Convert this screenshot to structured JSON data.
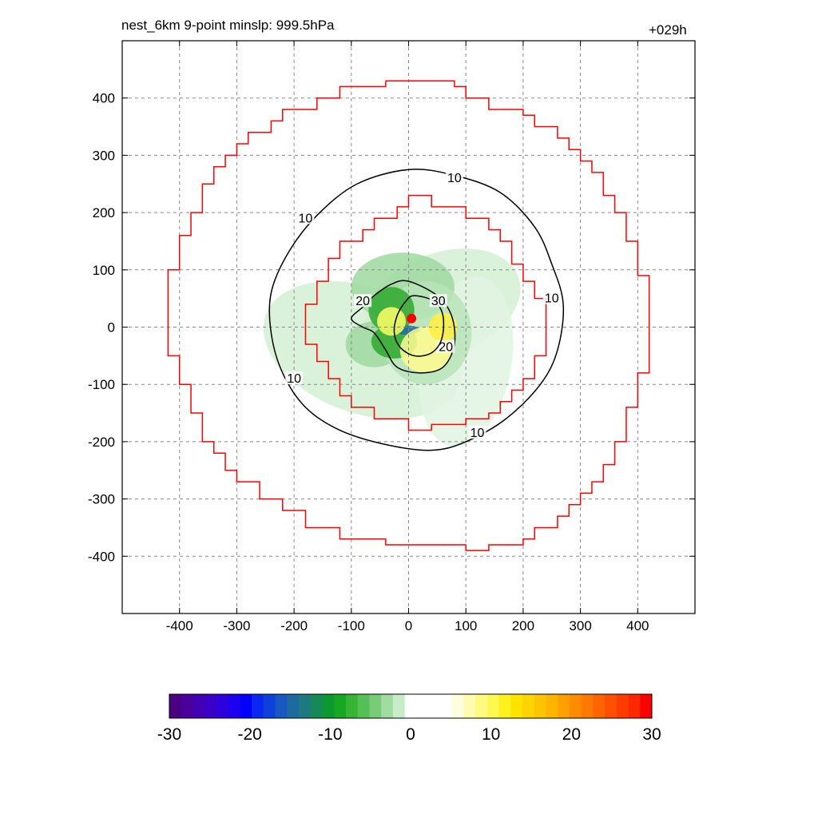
{
  "header": {
    "title_left": "nest_6km  9-point minslp: 999.5hPa",
    "title_right": "+029h"
  },
  "chart_data": {
    "type": "contour",
    "xlim": [
      -500,
      500
    ],
    "ylim": [
      -500,
      500
    ],
    "x_ticks": [
      -400,
      -300,
      -200,
      -100,
      0,
      100,
      200,
      300,
      400
    ],
    "y_ticks": [
      400,
      300,
      200,
      100,
      0,
      -100,
      -200,
      -300,
      -400
    ],
    "x_tick_labels": [
      "-400",
      "-300",
      "-200",
      "-100",
      "0",
      "100",
      "200",
      "300",
      "400"
    ],
    "y_tick_labels": [
      "400",
      "300",
      "200",
      "100",
      "0",
      "-100",
      "-200",
      "-300",
      "-400"
    ],
    "grid": true,
    "grid_style": "dashed",
    "boundary_rings": {
      "color": "#ff0000",
      "outer": [
        [
          -40,
          430
        ],
        [
          80,
          430
        ],
        [
          80,
          420
        ],
        [
          100,
          420
        ],
        [
          100,
          400
        ],
        [
          140,
          400
        ],
        [
          140,
          380
        ],
        [
          200,
          380
        ],
        [
          200,
          370
        ],
        [
          220,
          370
        ],
        [
          220,
          350
        ],
        [
          260,
          350
        ],
        [
          260,
          330
        ],
        [
          280,
          330
        ],
        [
          280,
          310
        ],
        [
          300,
          310
        ],
        [
          300,
          290
        ],
        [
          320,
          290
        ],
        [
          320,
          270
        ],
        [
          340,
          270
        ],
        [
          340,
          230
        ],
        [
          360,
          230
        ],
        [
          360,
          200
        ],
        [
          380,
          200
        ],
        [
          380,
          150
        ],
        [
          400,
          150
        ],
        [
          400,
          90
        ],
        [
          420,
          90
        ],
        [
          420,
          -80
        ],
        [
          400,
          -80
        ],
        [
          400,
          -140
        ],
        [
          380,
          -140
        ],
        [
          380,
          -200
        ],
        [
          360,
          -200
        ],
        [
          360,
          -240
        ],
        [
          340,
          -240
        ],
        [
          340,
          -270
        ],
        [
          320,
          -270
        ],
        [
          320,
          -290
        ],
        [
          300,
          -290
        ],
        [
          300,
          -310
        ],
        [
          280,
          -310
        ],
        [
          280,
          -330
        ],
        [
          260,
          -330
        ],
        [
          260,
          -350
        ],
        [
          220,
          -350
        ],
        [
          220,
          -370
        ],
        [
          200,
          -370
        ],
        [
          200,
          -380
        ],
        [
          140,
          -380
        ],
        [
          140,
          -390
        ],
        [
          100,
          -390
        ],
        [
          100,
          -380
        ],
        [
          -40,
          -380
        ],
        [
          -40,
          -370
        ],
        [
          -120,
          -370
        ],
        [
          -120,
          -350
        ],
        [
          -180,
          -350
        ],
        [
          -180,
          -320
        ],
        [
          -220,
          -320
        ],
        [
          -220,
          -300
        ],
        [
          -260,
          -300
        ],
        [
          -260,
          -270
        ],
        [
          -300,
          -270
        ],
        [
          -300,
          -250
        ],
        [
          -320,
          -250
        ],
        [
          -320,
          -220
        ],
        [
          -340,
          -220
        ],
        [
          -340,
          -200
        ],
        [
          -360,
          -200
        ],
        [
          -360,
          -150
        ],
        [
          -380,
          -150
        ],
        [
          -380,
          -100
        ],
        [
          -400,
          -100
        ],
        [
          -400,
          -50
        ],
        [
          -420,
          -50
        ],
        [
          -420,
          100
        ],
        [
          -400,
          100
        ],
        [
          -400,
          160
        ],
        [
          -380,
          160
        ],
        [
          -380,
          200
        ],
        [
          -360,
          200
        ],
        [
          -360,
          250
        ],
        [
          -340,
          250
        ],
        [
          -340,
          280
        ],
        [
          -320,
          280
        ],
        [
          -320,
          300
        ],
        [
          -300,
          300
        ],
        [
          -300,
          320
        ],
        [
          -280,
          320
        ],
        [
          -280,
          340
        ],
        [
          -240,
          340
        ],
        [
          -240,
          360
        ],
        [
          -220,
          360
        ],
        [
          -220,
          380
        ],
        [
          -160,
          380
        ],
        [
          -160,
          400
        ],
        [
          -120,
          400
        ],
        [
          -120,
          420
        ],
        [
          -40,
          420
        ],
        [
          -40,
          430
        ]
      ],
      "inner": [
        [
          0,
          230
        ],
        [
          40,
          230
        ],
        [
          40,
          210
        ],
        [
          100,
          210
        ],
        [
          100,
          190
        ],
        [
          140,
          190
        ],
        [
          140,
          170
        ],
        [
          160,
          170
        ],
        [
          160,
          150
        ],
        [
          180,
          150
        ],
        [
          180,
          110
        ],
        [
          200,
          110
        ],
        [
          200,
          80
        ],
        [
          220,
          80
        ],
        [
          220,
          50
        ],
        [
          240,
          50
        ],
        [
          240,
          -50
        ],
        [
          220,
          -50
        ],
        [
          220,
          -90
        ],
        [
          200,
          -90
        ],
        [
          200,
          -110
        ],
        [
          180,
          -110
        ],
        [
          180,
          -130
        ],
        [
          160,
          -130
        ],
        [
          160,
          -150
        ],
        [
          140,
          -150
        ],
        [
          140,
          -160
        ],
        [
          100,
          -160
        ],
        [
          100,
          -170
        ],
        [
          40,
          -170
        ],
        [
          40,
          -180
        ],
        [
          0,
          -180
        ],
        [
          0,
          -160
        ],
        [
          -60,
          -160
        ],
        [
          -60,
          -140
        ],
        [
          -100,
          -140
        ],
        [
          -100,
          -120
        ],
        [
          -120,
          -120
        ],
        [
          -120,
          -90
        ],
        [
          -140,
          -90
        ],
        [
          -140,
          -60
        ],
        [
          -160,
          -60
        ],
        [
          -160,
          -30
        ],
        [
          -180,
          -30
        ],
        [
          -180,
          40
        ],
        [
          -160,
          40
        ],
        [
          -160,
          80
        ],
        [
          -140,
          80
        ],
        [
          -140,
          120
        ],
        [
          -120,
          120
        ],
        [
          -120,
          150
        ],
        [
          -80,
          150
        ],
        [
          -80,
          170
        ],
        [
          -60,
          170
        ],
        [
          -60,
          190
        ],
        [
          -20,
          190
        ],
        [
          -20,
          210
        ],
        [
          0,
          210
        ],
        [
          0,
          230
        ]
      ]
    },
    "contour_lines": [
      {
        "level": 10,
        "labels": [
          "10",
          "10",
          "10",
          "10",
          "10"
        ],
        "points": [
          [
            0,
            275
          ],
          [
            80,
            265
          ],
          [
            160,
            235
          ],
          [
            220,
            175
          ],
          [
            250,
            110
          ],
          [
            270,
            40
          ],
          [
            260,
            -40
          ],
          [
            230,
            -100
          ],
          [
            170,
            -160
          ],
          [
            100,
            -200
          ],
          [
            40,
            -215
          ],
          [
            -40,
            -205
          ],
          [
            -120,
            -180
          ],
          [
            -180,
            -140
          ],
          [
            -220,
            -80
          ],
          [
            -240,
            -10
          ],
          [
            -240,
            60
          ],
          [
            -210,
            130
          ],
          [
            -160,
            195
          ],
          [
            -90,
            250
          ],
          [
            0,
            275
          ]
        ]
      },
      {
        "level": 20,
        "labels": [
          "20",
          "20"
        ],
        "points": [
          [
            0,
            80
          ],
          [
            50,
            55
          ],
          [
            75,
            20
          ],
          [
            80,
            -30
          ],
          [
            60,
            -70
          ],
          [
            20,
            -80
          ],
          [
            -20,
            -70
          ],
          [
            -40,
            -40
          ],
          [
            -60,
            -10
          ],
          [
            -80,
            0
          ],
          [
            -100,
            15
          ],
          [
            -80,
            35
          ],
          [
            -60,
            55
          ],
          [
            -30,
            75
          ],
          [
            0,
            80
          ]
        ]
      },
      {
        "level": 30,
        "labels": [
          "30"
        ],
        "points": [
          [
            10,
            55
          ],
          [
            45,
            45
          ],
          [
            60,
            20
          ],
          [
            58,
            -20
          ],
          [
            40,
            -45
          ],
          [
            10,
            -50
          ],
          [
            -15,
            -35
          ],
          [
            -25,
            -10
          ],
          [
            -20,
            20
          ],
          [
            -5,
            45
          ],
          [
            10,
            55
          ]
        ]
      }
    ],
    "storm_center": {
      "x": 5,
      "y": 15,
      "color": "#ff0000"
    },
    "colorbar": {
      "ticks": [
        -30,
        -20,
        -10,
        0,
        10,
        20,
        30
      ],
      "tick_labels": [
        "-30",
        "-20",
        "-10",
        "0",
        "10",
        "20",
        "30"
      ],
      "colors": [
        "#4b0082",
        "#4a009a",
        "#4200b2",
        "#3a00c8",
        "#2e00dc",
        "#1e00f0",
        "#0000ff",
        "#0a28f0",
        "#1040dc",
        "#1858c0",
        "#1e6aa0",
        "#1e7a80",
        "#138a58",
        "#0c9a30",
        "#16a822",
        "#35b435",
        "#55c055",
        "#78cc78",
        "#a0dca0",
        "#c8ecc8",
        "#ffffff",
        "#ffffff",
        "#ffffff",
        "#ffffff",
        "#fffde0",
        "#fffcb0",
        "#fffa80",
        "#fff850",
        "#fff020",
        "#ffe400",
        "#ffd400",
        "#ffc400",
        "#ffb400",
        "#ffa000",
        "#ff8c00",
        "#ff7800",
        "#ff6400",
        "#ff5000",
        "#ff3c00",
        "#ff2800",
        "#ff0000"
      ]
    }
  }
}
